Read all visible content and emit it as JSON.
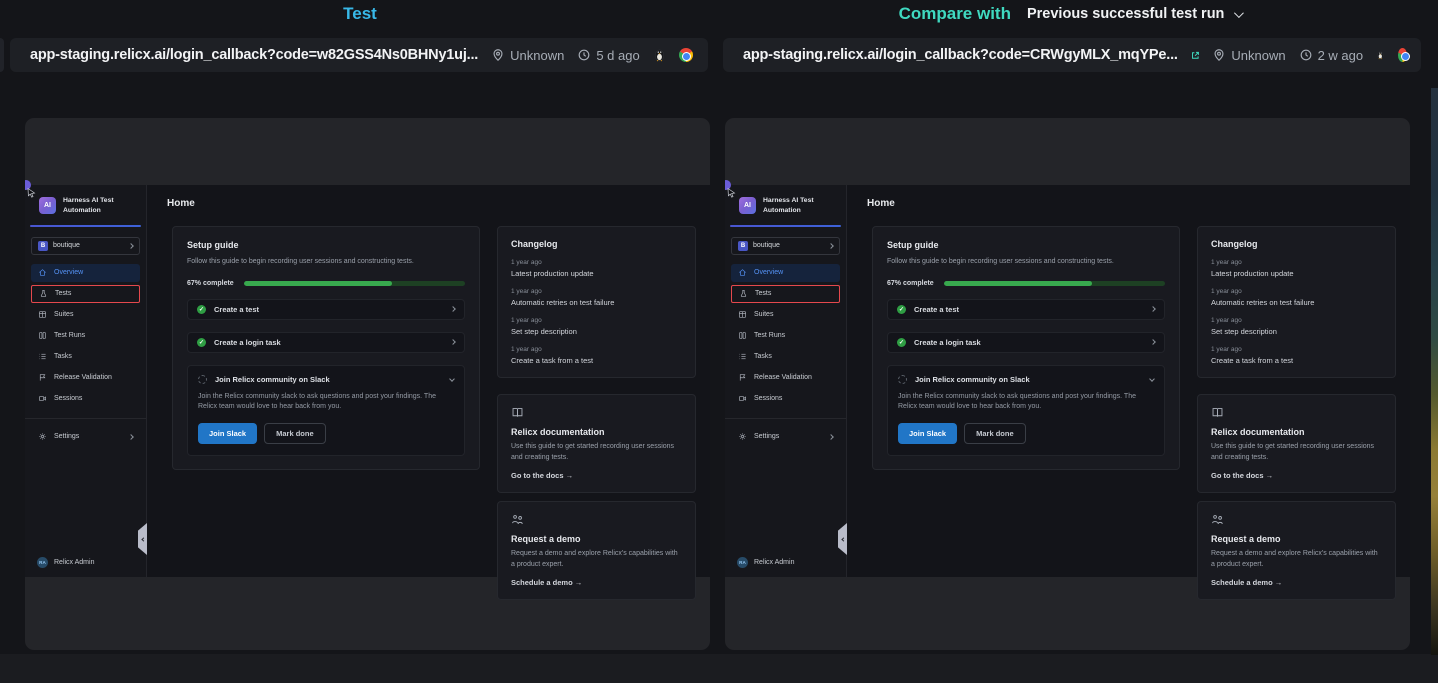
{
  "colors": {
    "test_title": "#38b8e8",
    "compare_title": "#3fd9c0",
    "highlight_red": "#e5484d",
    "progress_fill": "#38a94e",
    "progress_track": "#1d4023",
    "primary_button": "#2176c7",
    "active_nav": "#5592f5"
  },
  "panels": [
    {
      "title": "Test",
      "url": "app-staging.relicx.ai/login_callback?code=w82GSS4Ns0BHNy1uj...",
      "location": "Unknown",
      "age": "5 d ago",
      "icons": [
        "location-pin-icon",
        "clock-icon",
        "linux-tux-icon",
        "chrome-icon"
      ]
    },
    {
      "title": "Compare with",
      "dropdown": "Previous successful test run",
      "url": "app-staging.relicx.ai/login_callback?code=CRWgyMLX_mqYPe...",
      "location": "Unknown",
      "age": "2 w ago",
      "icons": [
        "external-link-icon",
        "location-pin-icon",
        "clock-icon",
        "linux-tux-icon",
        "chrome-icon"
      ]
    }
  ],
  "app": {
    "brand": "Harness AI Test Automation",
    "project_badge": "B",
    "project": "boutique",
    "nav": [
      {
        "label": "Overview",
        "icon": "home-icon",
        "state": "active"
      },
      {
        "label": "Tests",
        "icon": "flask-icon",
        "state": "red-highlight-box"
      },
      {
        "label": "Suites",
        "icon": "table-icon"
      },
      {
        "label": "Test Runs",
        "icon": "columns-icon"
      },
      {
        "label": "Tasks",
        "icon": "list-icon"
      },
      {
        "label": "Release Validation",
        "icon": "flag-icon"
      },
      {
        "label": "Sessions",
        "icon": "video-icon"
      }
    ],
    "settings_label": "Settings",
    "user": {
      "initials": "RA",
      "name": "Relicx Admin"
    },
    "page_title": "Home",
    "setup_guide": {
      "title": "Setup guide",
      "description": "Follow this guide to begin recording user sessions and constructing tests.",
      "progress_label": "67% complete",
      "progress_pct": 67,
      "tasks": [
        "Create a test",
        "Create a login task"
      ],
      "slack": {
        "title": "Join Relicx community on Slack",
        "description": "Join the Relicx community slack to ask questions and post your findings. The Relicx team would love to hear back from you.",
        "primary_button": "Join Slack",
        "secondary_button": "Mark done"
      }
    },
    "changelog": {
      "title": "Changelog",
      "entries": [
        {
          "time": "1 year ago",
          "title": "Latest production update"
        },
        {
          "time": "1 year ago",
          "title": "Automatic retries on test failure"
        },
        {
          "time": "1 year ago",
          "title": "Set step description"
        },
        {
          "time": "1 year ago",
          "title": "Create a task from a test"
        }
      ]
    },
    "docs_card": {
      "title": "Relicx documentation",
      "description": "Use this guide to get started recording user sessions and creating tests.",
      "link": "Go to the docs →",
      "icon": "book-icon"
    },
    "demo_card": {
      "title": "Request a demo",
      "description": "Request a demo and explore Relicx's capabilities with a product expert.",
      "link": "Schedule a demo →",
      "icon": "people-icon"
    }
  }
}
